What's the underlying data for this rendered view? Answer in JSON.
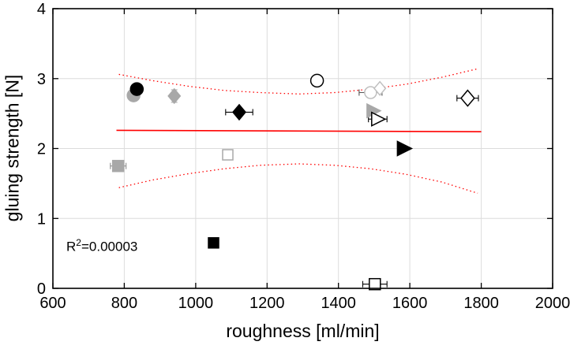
{
  "chart_data": {
    "type": "scatter",
    "title": "",
    "xlabel": "roughness [ml/min]",
    "ylabel": "gluing strength [N]",
    "xlim": [
      600,
      2000
    ],
    "ylim": [
      0,
      4
    ],
    "xticks": [
      600,
      800,
      1000,
      1200,
      1400,
      1600,
      1800,
      2000
    ],
    "yticks": [
      0,
      1,
      2,
      3,
      4
    ],
    "grid": true,
    "legend": "none",
    "annotation": {
      "base": "R",
      "sup": "2",
      "rest": "=0.00003",
      "x": 655,
      "y": 0.62
    },
    "colors": {
      "fit": "#ff0000",
      "band": "#ff0000",
      "grid": "#dcdcdc",
      "axis": "#000000",
      "gray": "#a8a8a8",
      "light_gray": "#bfbfbf"
    },
    "fit_line": {
      "points": [
        [
          778,
          2.26
        ],
        [
          1800,
          2.24
        ]
      ]
    },
    "confidence_band": {
      "upper": [
        [
          785,
          3.06
        ],
        [
          880,
          2.97
        ],
        [
          980,
          2.89
        ],
        [
          1080,
          2.83
        ],
        [
          1180,
          2.8
        ],
        [
          1290,
          2.78
        ],
        [
          1390,
          2.8
        ],
        [
          1490,
          2.85
        ],
        [
          1590,
          2.92
        ],
        [
          1690,
          3.02
        ],
        [
          1790,
          3.14
        ]
      ],
      "lower": [
        [
          785,
          1.44
        ],
        [
          880,
          1.55
        ],
        [
          980,
          1.64
        ],
        [
          1080,
          1.71
        ],
        [
          1180,
          1.76
        ],
        [
          1290,
          1.78
        ],
        [
          1390,
          1.76
        ],
        [
          1490,
          1.71
        ],
        [
          1590,
          1.63
        ],
        [
          1690,
          1.52
        ],
        [
          1790,
          1.36
        ]
      ]
    },
    "points": [
      {
        "label": "gray filled circle",
        "marker": "circle",
        "x": 826,
        "y": 2.76,
        "size": 16,
        "fill": "#a8a8a8",
        "edge": "#a8a8a8"
      },
      {
        "label": "black filled circle",
        "marker": "circle",
        "x": 835,
        "y": 2.85,
        "size": 16,
        "fill": "#000000",
        "edge": "#000000"
      },
      {
        "label": "gray filled diamond",
        "marker": "diamond",
        "x": 940,
        "y": 2.75,
        "size": 18,
        "fill": "#a8a8a8",
        "edge": "#a8a8a8",
        "yerr": 0.09,
        "err_color": "#a8a8a8"
      },
      {
        "label": "black filled diamond",
        "marker": "diamond",
        "x": 1122,
        "y": 2.52,
        "size": 19,
        "fill": "#000000",
        "edge": "#000000",
        "xerr": 38,
        "err_color": "#000000"
      },
      {
        "label": "open black circle",
        "marker": "circle",
        "x": 1340,
        "y": 2.97,
        "size": 16,
        "fill": "#ffffff",
        "edge": "#000000"
      },
      {
        "label": "open gray circle",
        "marker": "circle",
        "x": 1490,
        "y": 2.8,
        "size": 15,
        "fill": "#ffffff",
        "edge": "#bfbfbf",
        "xerr": 32,
        "err_color": "#555555"
      },
      {
        "label": "open gray diamond",
        "marker": "diamond",
        "x": 1516,
        "y": 2.86,
        "size": 17,
        "fill": "#ffffff",
        "edge": "#bfbfbf"
      },
      {
        "label": "gray filled triangle",
        "marker": "triangle-right",
        "x": 1497,
        "y": 2.54,
        "size": 17,
        "fill": "#a8a8a8",
        "edge": "#a8a8a8"
      },
      {
        "label": "open black triangle",
        "marker": "triangle-right",
        "x": 1510,
        "y": 2.42,
        "size": 17,
        "fill": "#ffffff",
        "edge": "#000000",
        "xerr": 26,
        "err_color": "#000000"
      },
      {
        "label": "open black diamond",
        "marker": "diamond",
        "x": 1762,
        "y": 2.72,
        "size": 20,
        "fill": "#ffffff",
        "edge": "#000000",
        "xerr": 30,
        "err_color": "#000000"
      },
      {
        "label": "black filled triangle",
        "marker": "triangle-right",
        "x": 1583,
        "y": 2.0,
        "size": 18,
        "fill": "#000000",
        "edge": "#000000"
      },
      {
        "label": "gray filled square",
        "marker": "square",
        "x": 783,
        "y": 1.75,
        "size": 14,
        "fill": "#a8a8a8",
        "edge": "#a8a8a8",
        "xerr": 22,
        "err_color": "#909090"
      },
      {
        "label": "open gray square",
        "marker": "square",
        "x": 1090,
        "y": 1.91,
        "size": 13,
        "fill": "#ffffff",
        "edge": "#a8a8a8"
      },
      {
        "label": "black filled square",
        "marker": "square",
        "x": 1050,
        "y": 0.65,
        "size": 13,
        "fill": "#000000",
        "edge": "#000000",
        "xerr": 14,
        "err_color": "#000000"
      },
      {
        "label": "open black square",
        "marker": "square",
        "x": 1502,
        "y": 0.06,
        "size": 14,
        "fill": "#ffffff",
        "edge": "#000000",
        "xerr": 34,
        "err_color": "#000000"
      }
    ]
  }
}
